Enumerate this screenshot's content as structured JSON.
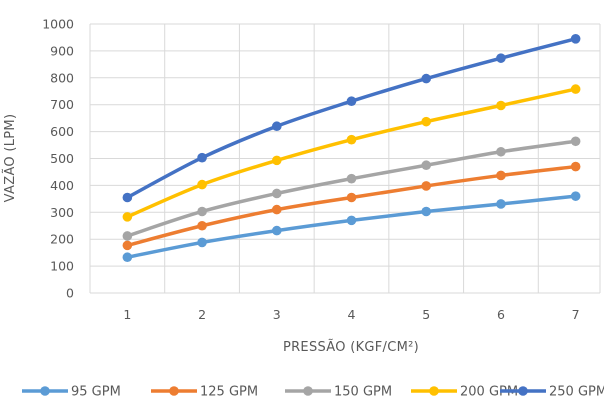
{
  "chart_data": {
    "type": "line",
    "title": "",
    "xlabel": "PRESSÃO (KGF/CM²)",
    "ylabel": "VAZÃO (LPM)",
    "x": [
      1,
      2,
      3,
      4,
      5,
      6,
      7
    ],
    "xlim": [
      0.5,
      7.5
    ],
    "ylim": [
      0,
      1000
    ],
    "yticks": [
      0,
      100,
      200,
      300,
      400,
      500,
      600,
      700,
      800,
      900,
      1000
    ],
    "grid": true,
    "legend_position": "bottom",
    "series": [
      {
        "name": "95 GPM",
        "color": "#5B9BD5",
        "values": [
          133,
          188,
          232,
          270,
          303,
          331,
          360
        ]
      },
      {
        "name": "125 GPM",
        "color": "#ED7D31",
        "values": [
          177,
          250,
          310,
          355,
          398,
          437,
          470
        ]
      },
      {
        "name": "150 GPM",
        "color": "#A5A5A5",
        "values": [
          212,
          303,
          370,
          425,
          475,
          525,
          564
        ]
      },
      {
        "name": "200 GPM",
        "color": "#FFC000",
        "values": [
          283,
          403,
          493,
          570,
          637,
          697,
          758
        ]
      },
      {
        "name": "250 GPM",
        "color": "#4472C4",
        "values": [
          355,
          503,
          620,
          713,
          797,
          873,
          945
        ]
      }
    ]
  }
}
